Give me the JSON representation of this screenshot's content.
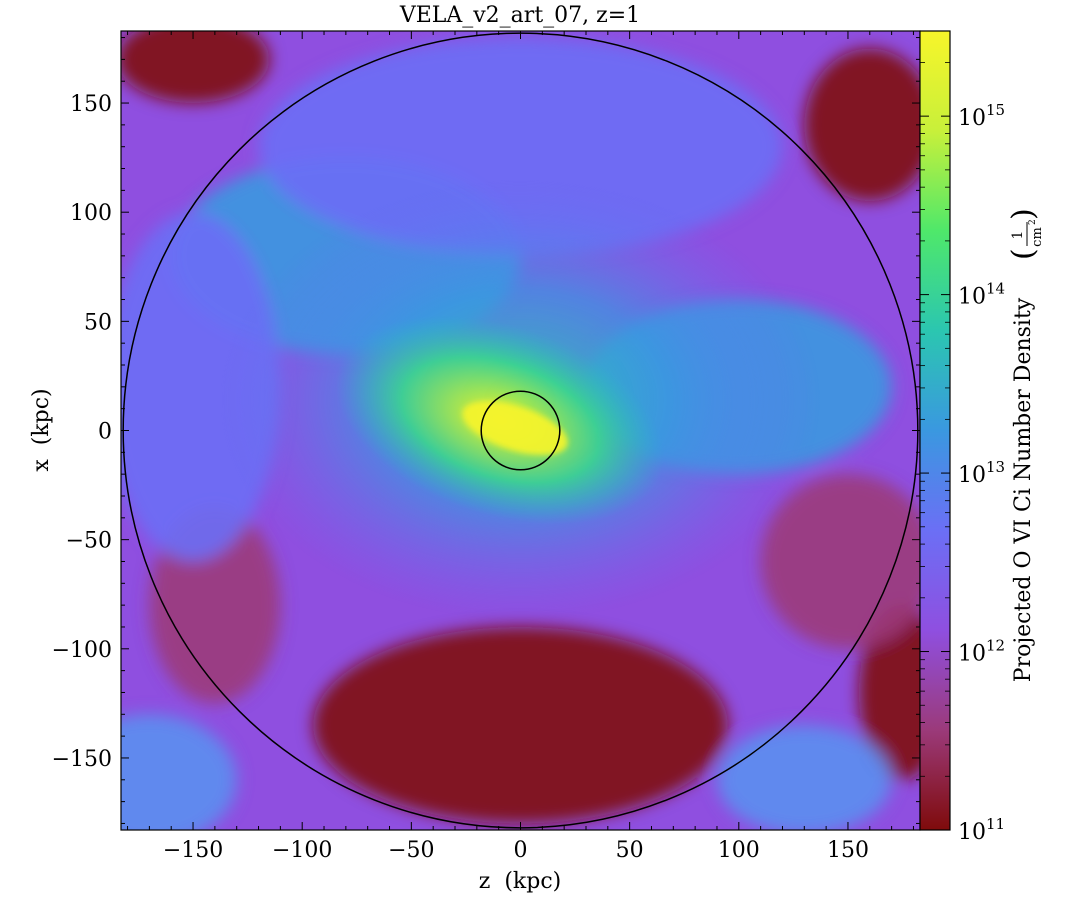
{
  "chart_data": {
    "type": "heatmap",
    "title": "VELA_v2_art_07, z=1",
    "xlabel": "z  (kpc)",
    "ylabel": "x  (kpc)",
    "xlim": [
      -183,
      183
    ],
    "ylim": [
      -183,
      183
    ],
    "xticks": [
      -150,
      -100,
      -50,
      0,
      50,
      100,
      150
    ],
    "yticks": [
      -150,
      -100,
      -50,
      0,
      50,
      100,
      150
    ],
    "x_tick_labels": [
      "−150",
      "−100",
      "−50",
      "0",
      "50",
      "100",
      "150"
    ],
    "y_tick_labels": [
      "−150",
      "−100",
      "−50",
      "0",
      "50",
      "100",
      "150"
    ],
    "colorbar": {
      "label": "Projected O VI Ci Number Density",
      "unit_numerator": "1",
      "unit_denominator": "cm",
      "unit_exponent": "2",
      "scale": "log",
      "range": [
        100000000000.0,
        3000000000000000.0
      ],
      "ticks": [
        {
          "value": 100000000000.0,
          "base": "10",
          "exponent": "11"
        },
        {
          "value": 1000000000000.0,
          "base": "10",
          "exponent": "12"
        },
        {
          "value": 10000000000000.0,
          "base": "10",
          "exponent": "13"
        },
        {
          "value": 100000000000000.0,
          "base": "10",
          "exponent": "14"
        },
        {
          "value": 1000000000000000.0,
          "base": "10",
          "exponent": "15"
        }
      ],
      "colormap": [
        "#7f0b0b",
        "#9b3a7a",
        "#8f4fe0",
        "#6b6ff5",
        "#3a98e0",
        "#2bc6b0",
        "#4fe86a",
        "#c8f03a",
        "#f7f52a"
      ]
    },
    "circles": [
      {
        "name": "outer-virial-circle",
        "center": [
          0,
          0
        ],
        "radius": 182
      },
      {
        "name": "inner-galaxy-circle",
        "center": [
          0,
          0
        ],
        "radius": 18
      }
    ],
    "grid": false
  }
}
